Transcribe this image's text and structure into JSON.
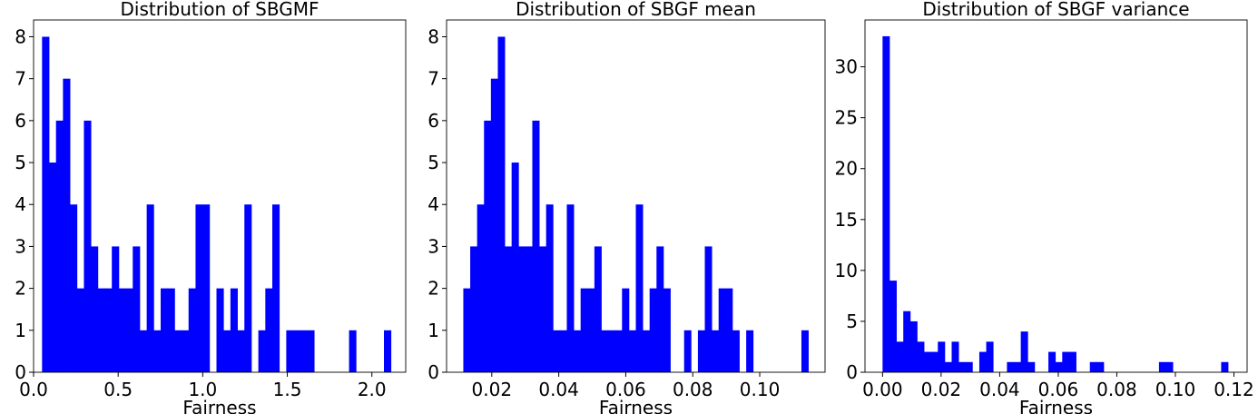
{
  "chart_data": [
    {
      "type": "bar",
      "title": "Distribution of SBGMF",
      "xlabel": "Fairness",
      "ylabel": "",
      "xlim": [
        0.0,
        2.2
      ],
      "ylim": [
        0,
        8.4
      ],
      "xticks": [
        0.0,
        0.5,
        1.0,
        1.5,
        2.0
      ],
      "xtick_labels": [
        "0.0",
        "0.5",
        "1.0",
        "1.5",
        "2.0"
      ],
      "yticks": [
        0,
        1,
        2,
        3,
        4,
        5,
        6,
        7,
        8
      ],
      "ytick_labels": [
        "0",
        "1",
        "2",
        "3",
        "4",
        "5",
        "6",
        "7",
        "8"
      ],
      "bin_start": 0.05,
      "bin_width": 0.04125,
      "counts": [
        8,
        5,
        6,
        7,
        4,
        2,
        6,
        3,
        2,
        2,
        3,
        2,
        2,
        3,
        1,
        4,
        1,
        2,
        2,
        1,
        1,
        2,
        4,
        4,
        0,
        2,
        1,
        2,
        1,
        4,
        0,
        1,
        2,
        4,
        0,
        1,
        1,
        1,
        1,
        0,
        0,
        0,
        0,
        0,
        1,
        0,
        0,
        0,
        0,
        1
      ],
      "bar_color": "#0000ff"
    },
    {
      "type": "bar",
      "title": "Distribution of SBGF mean",
      "xlabel": "Fairness",
      "ylabel": "",
      "xlim": [
        0.0065,
        0.1195
      ],
      "ylim": [
        0,
        8.4
      ],
      "xticks": [
        0.02,
        0.04,
        0.06,
        0.08,
        0.1
      ],
      "xtick_labels": [
        "0.02",
        "0.04",
        "0.06",
        "0.08",
        "0.10"
      ],
      "yticks": [
        0,
        1,
        2,
        3,
        4,
        5,
        6,
        7,
        8
      ],
      "ytick_labels": [
        "0",
        "1",
        "2",
        "3",
        "4",
        "5",
        "6",
        "7",
        "8"
      ],
      "bin_start": 0.0115,
      "bin_width": 0.00206,
      "counts": [
        2,
        3,
        4,
        6,
        7,
        8,
        3,
        5,
        3,
        3,
        6,
        3,
        4,
        1,
        1,
        4,
        1,
        2,
        2,
        3,
        1,
        1,
        1,
        2,
        1,
        4,
        1,
        2,
        3,
        2,
        0,
        0,
        1,
        0,
        1,
        3,
        1,
        2,
        2,
        1,
        0,
        1,
        0,
        0,
        0,
        0,
        0,
        0,
        0,
        1
      ],
      "bar_color": "#0000ff"
    },
    {
      "type": "bar",
      "title": "Distribution of SBGF variance",
      "xlabel": "Fairness",
      "ylabel": "",
      "xlim": [
        -0.006,
        0.1245
      ],
      "ylim": [
        0,
        34.6
      ],
      "xticks": [
        0.0,
        0.02,
        0.04,
        0.06,
        0.08,
        0.1,
        0.12
      ],
      "xtick_labels": [
        "0.00",
        "0.02",
        "0.04",
        "0.06",
        "0.08",
        "0.10",
        "0.12"
      ],
      "yticks": [
        0,
        5,
        10,
        15,
        20,
        25,
        30
      ],
      "ytick_labels": [
        "0",
        "5",
        "10",
        "15",
        "20",
        "25",
        "30"
      ],
      "bin_start": 0.0,
      "bin_width": 0.00236,
      "counts": [
        33,
        9,
        3,
        6,
        5,
        3,
        2,
        2,
        3,
        1,
        3,
        1,
        1,
        0,
        2,
        3,
        0,
        0,
        1,
        1,
        4,
        1,
        0,
        0,
        2,
        1,
        2,
        2,
        0,
        0,
        1,
        1,
        0,
        0,
        0,
        0,
        0,
        0,
        0,
        0,
        1,
        1,
        0,
        0,
        0,
        0,
        0,
        0,
        0,
        1
      ],
      "bar_color": "#0000ff"
    }
  ]
}
